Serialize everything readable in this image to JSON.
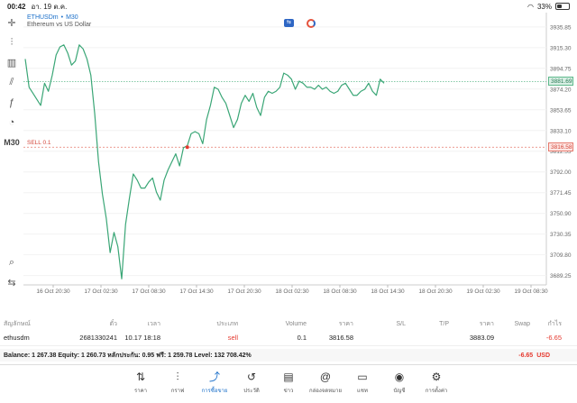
{
  "status": {
    "time": "00:42",
    "date": "อา. 19 ต.ค.",
    "battery": "33%",
    "battery_level": 0.33
  },
  "toolbar": [
    {
      "name": "crosshair-icon",
      "glyph": "✛"
    },
    {
      "name": "candles-icon",
      "glyph": "⫶"
    },
    {
      "name": "indicators-icon",
      "glyph": "▥"
    },
    {
      "name": "objects-icon",
      "glyph": "⫽"
    },
    {
      "name": "function-icon",
      "glyph": "ƒ"
    },
    {
      "name": "shapes-icon",
      "glyph": "◔"
    },
    {
      "name": "timeframe",
      "glyph": "M30"
    }
  ],
  "chart": {
    "symbol": "ETHUSDm",
    "timeframe": "M30",
    "description": "Ethereum vs US Dollar",
    "current_price": "3881.69",
    "sell_label": "SELL 0.1",
    "sell_price_tag": "3816.58"
  },
  "chart_data": {
    "type": "line",
    "ylim": [
      3680,
      3950
    ],
    "yticks": [
      "3935.85",
      "3915.30",
      "3894.75",
      "3874.20",
      "3853.65",
      "3833.10",
      "3812.55",
      "3792.00",
      "3771.45",
      "3750.90",
      "3730.35",
      "3709.80",
      "3689.25"
    ],
    "xticks": [
      "16 Oct 20:30",
      "17 Oct 02:30",
      "17 Oct 08:30",
      "17 Oct 14:30",
      "17 Oct 20:30",
      "18 Oct 02:30",
      "18 Oct 08:30",
      "18 Oct 14:30",
      "18 Oct 20:30",
      "19 Oct 02:30",
      "19 Oct 08:30"
    ],
    "current_price": 3881.69,
    "sell_price": 3816.58,
    "sell_point_index": 42,
    "values": [
      3904,
      3876,
      3870,
      3864,
      3858,
      3880,
      3872,
      3888,
      3908,
      3916,
      3918,
      3910,
      3898,
      3902,
      3918,
      3914,
      3904,
      3888,
      3850,
      3802,
      3770,
      3746,
      3712,
      3732,
      3718,
      3686,
      3740,
      3766,
      3790,
      3784,
      3776,
      3776,
      3782,
      3786,
      3772,
      3764,
      3784,
      3794,
      3802,
      3810,
      3798,
      3816,
      3818,
      3830,
      3832,
      3830,
      3820,
      3844,
      3858,
      3876,
      3874,
      3866,
      3860,
      3848,
      3836,
      3844,
      3860,
      3868,
      3862,
      3870,
      3856,
      3848,
      3866,
      3872,
      3870,
      3872,
      3876,
      3890,
      3888,
      3884,
      3874,
      3882,
      3880,
      3876,
      3876,
      3874,
      3878,
      3874,
      3876,
      3872,
      3870,
      3872,
      3878,
      3880,
      3874,
      3868,
      3868,
      3872,
      3874,
      3880,
      3872,
      3868,
      3884,
      3880
    ]
  },
  "positions": {
    "headers": [
      "สัญลักษณ์",
      "ตั๋ว",
      "เวลา",
      "ประเภท",
      "Volume",
      "ราคา",
      "S/L",
      "T/P",
      "ราคา",
      "Swap",
      "กำไร",
      "หมายเหตุ"
    ],
    "row": {
      "symbol": "ethusdm",
      "ticket": "2681330241",
      "time": "10.17 18:18",
      "type": "sell",
      "volume": "0.1",
      "open_price": "3816.58",
      "sl": "",
      "tp": "",
      "price": "3883.09",
      "swap": "",
      "profit": "-6.65",
      "comment": ""
    }
  },
  "balance": {
    "text": "Balance: 1 267.38 Equity: 1 260.73 หลักประกัน: 0.95 ฟรี: 1 259.78 Level: 132 708.42%",
    "pl": "-6.65",
    "currency": "USD"
  },
  "tabs": [
    {
      "name": "tab-quotes",
      "label": "ราคา",
      "glyph": "⇅"
    },
    {
      "name": "tab-chart",
      "label": "กราฟ",
      "glyph": "⫶"
    },
    {
      "name": "tab-trade",
      "label": "การซื้อขาย",
      "glyph": "⤴",
      "active": true
    },
    {
      "name": "tab-history",
      "label": "ประวัติ",
      "glyph": "↺"
    },
    {
      "name": "tab-news",
      "label": "ข่าว",
      "glyph": "▤"
    },
    {
      "name": "tab-mailbox",
      "label": "กล่องจดหมาย",
      "glyph": "@"
    },
    {
      "name": "tab-chat",
      "label": "แชท",
      "glyph": "▭"
    },
    {
      "name": "tab-accounts",
      "label": "บัญชี",
      "glyph": "◉"
    },
    {
      "name": "tab-settings",
      "label": "การตั้งค่า",
      "glyph": "⚙"
    }
  ],
  "colors": {
    "line": "#3aa676",
    "grid": "#eeeeee",
    "current": "#5db88a",
    "sell": "#e5796d",
    "accent": "#1a6fc9"
  }
}
